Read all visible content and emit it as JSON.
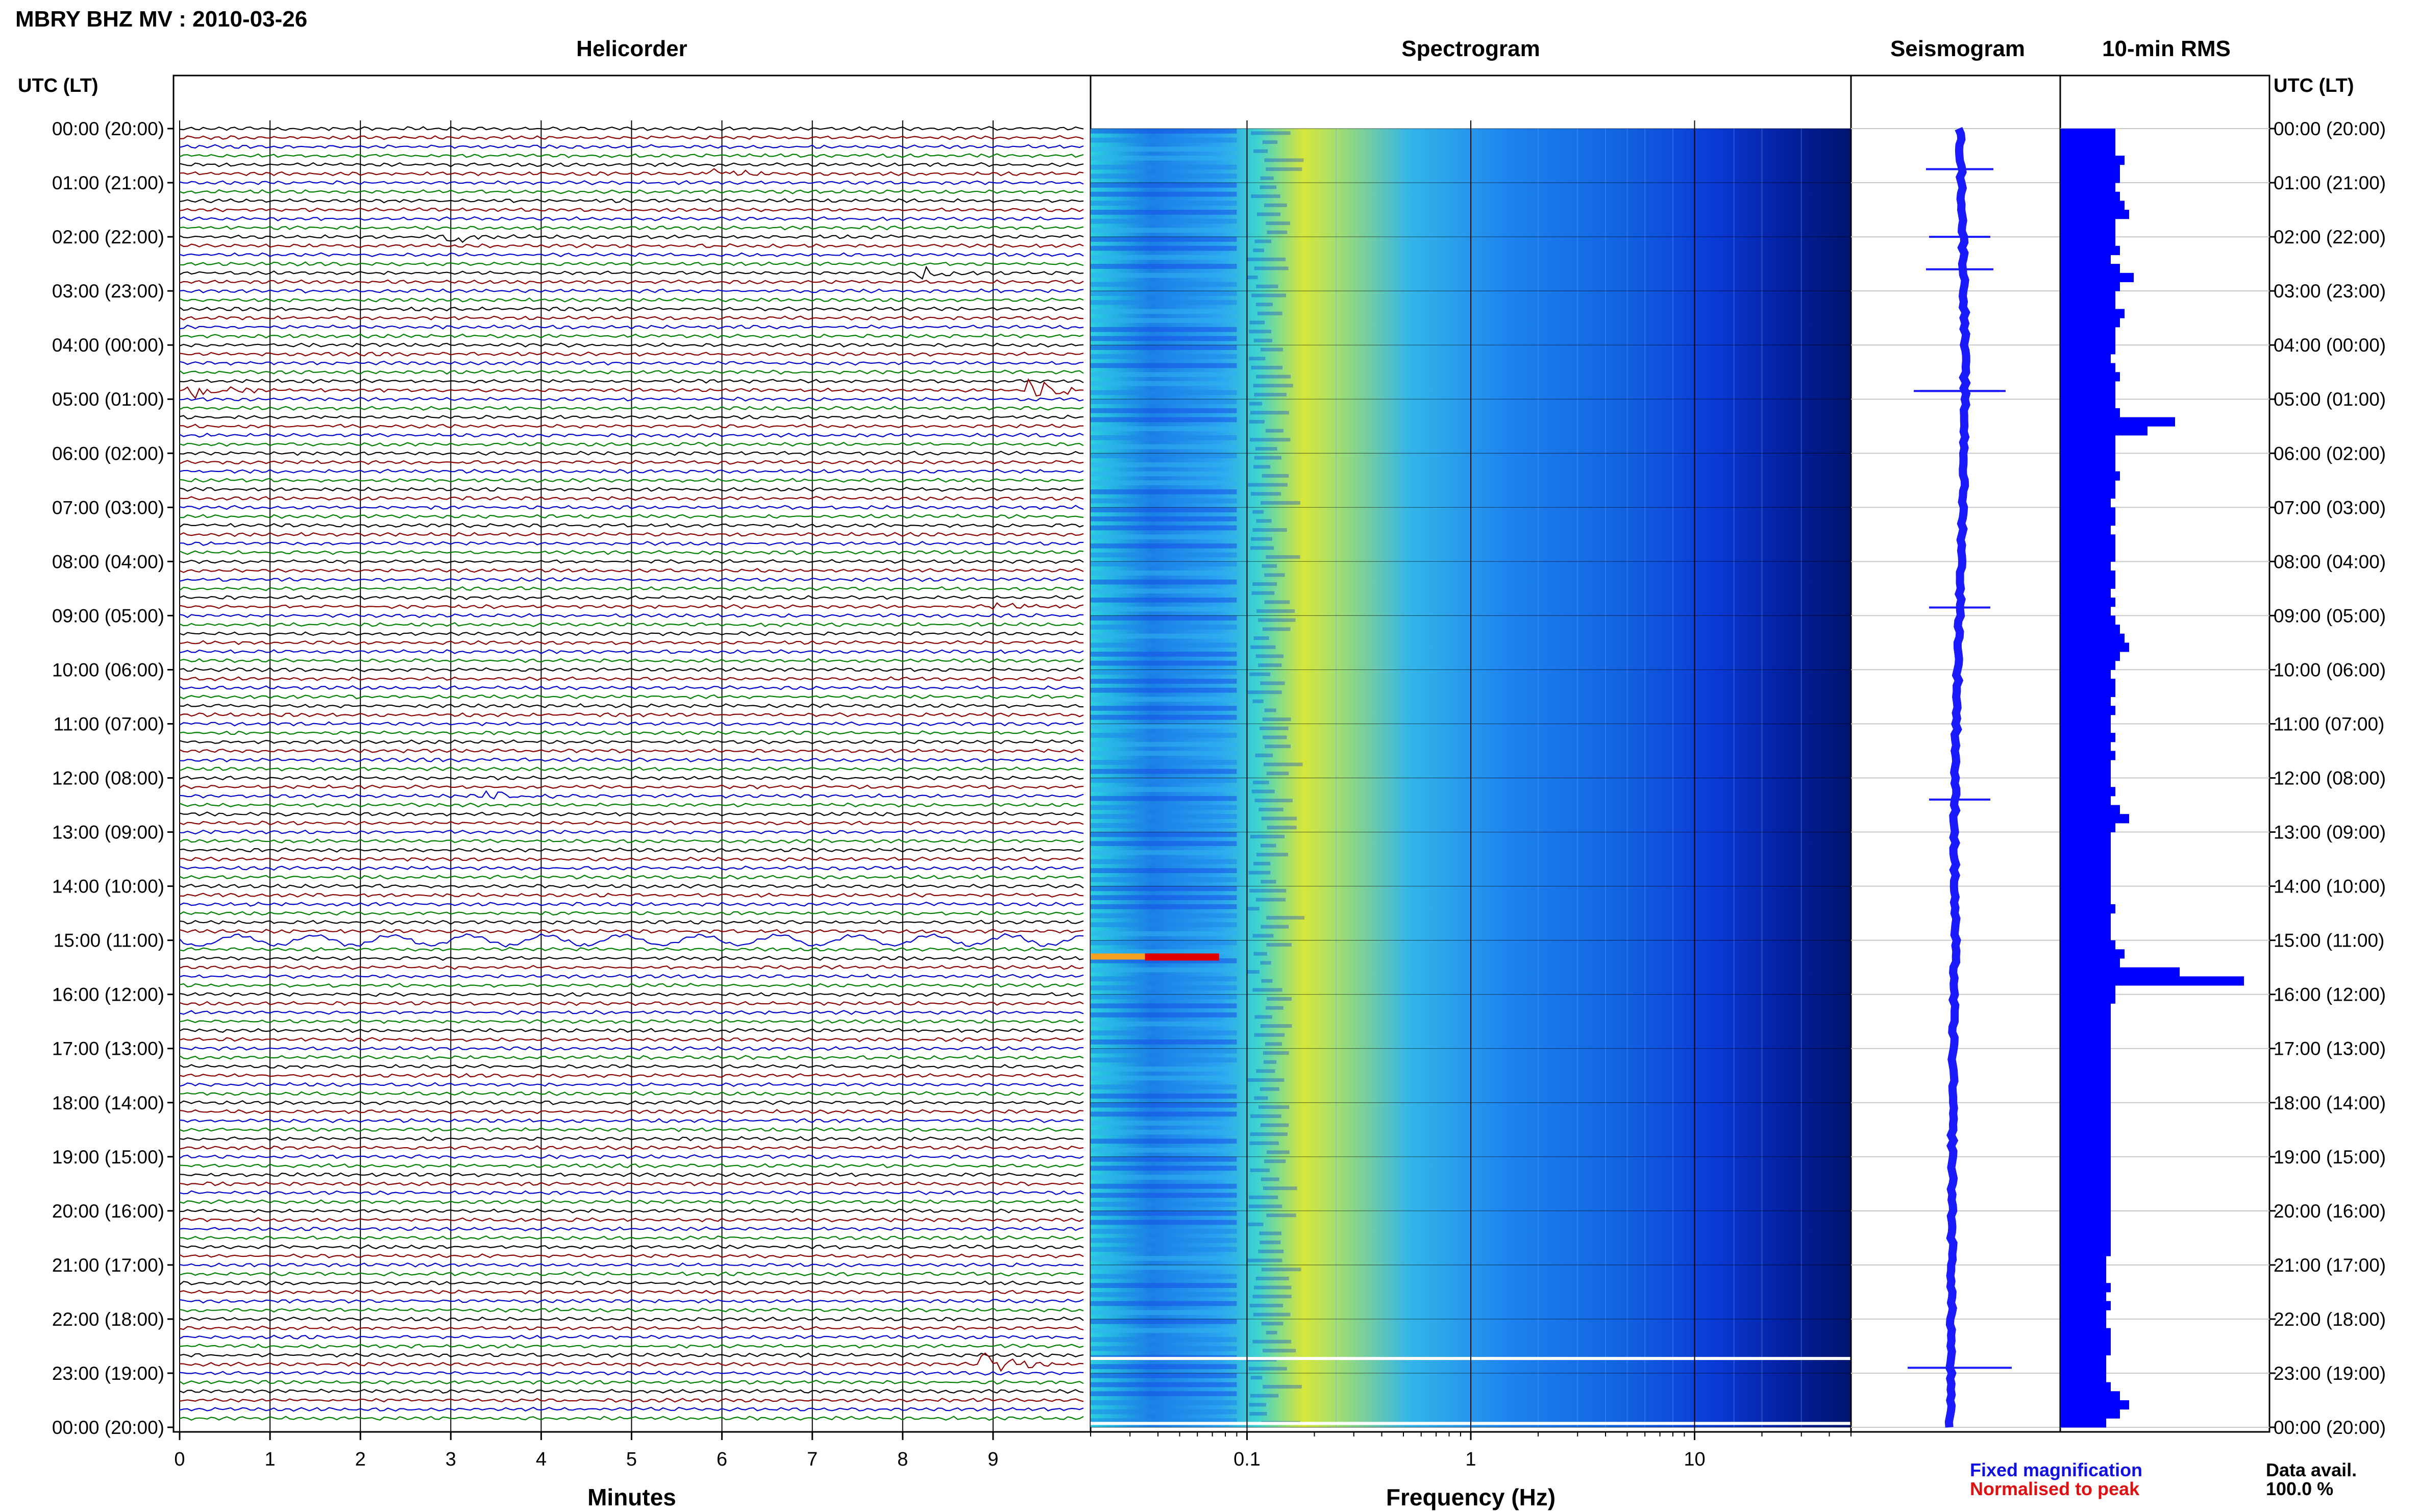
{
  "header": {
    "station_title": "MBRY BHZ MV : 2010-03-26",
    "utc_label_left": "UTC (LT)",
    "utc_label_right": "UTC (LT)"
  },
  "panels": {
    "helicorder": "Helicorder",
    "spectrogram": "Spectrogram",
    "seismogram": "Seismogram",
    "rms": "10-min RMS"
  },
  "axes": {
    "minutes_label": "Minutes",
    "frequency_label": "Frequency (Hz)",
    "minute_ticks": [
      "0",
      "1",
      "2",
      "3",
      "4",
      "5",
      "6",
      "7",
      "8",
      "9"
    ],
    "frequency_ticks": [
      "0.1",
      "1",
      "10"
    ]
  },
  "time_labels": [
    "00:00 (20:00)",
    "01:00 (21:00)",
    "02:00 (22:00)",
    "03:00 (23:00)",
    "04:00 (00:00)",
    "05:00 (01:00)",
    "06:00 (02:00)",
    "07:00 (03:00)",
    "08:00 (04:00)",
    "09:00 (05:00)",
    "10:00 (06:00)",
    "11:00 (07:00)",
    "12:00 (08:00)",
    "13:00 (09:00)",
    "14:00 (10:00)",
    "15:00 (11:00)",
    "16:00 (12:00)",
    "17:00 (13:00)",
    "18:00 (14:00)",
    "19:00 (15:00)",
    "20:00 (16:00)",
    "21:00 (17:00)",
    "22:00 (18:00)",
    "23:00 (19:00)",
    "00:00 (20:00)"
  ],
  "legend": {
    "fixed": "Fixed magnification",
    "normalised": "Normalised to peak",
    "avail_label": "Data avail.",
    "avail_value": "100.0 %"
  },
  "colors": {
    "fixed": "#1010e0",
    "normalised": "#e01010",
    "trace_cycle": [
      "#000000",
      "#8b0000",
      "#0000cd",
      "#008000"
    ],
    "rms_bar": "#0000ff"
  },
  "chart_data": {
    "type": "helicorder+spectrogram+seismogram+rms",
    "station": "MBRY BHZ MV",
    "date": "2010-03-26",
    "rows_per_hour": 6,
    "rms_10min": [
      1.2,
      1.2,
      1.2,
      1.4,
      1.3,
      1.3,
      1.2,
      1.3,
      1.4,
      1.5,
      1.2,
      1.2,
      1.2,
      1.3,
      1.1,
      1.3,
      1.6,
      1.3,
      1.2,
      1.2,
      1.4,
      1.3,
      1.2,
      1.2,
      1.2,
      1.1,
      1.2,
      1.3,
      1.2,
      1.2,
      1.2,
      1.3,
      2.5,
      1.9,
      1.2,
      1.2,
      1.2,
      1.2,
      1.3,
      1.2,
      1.2,
      1.1,
      1.2,
      1.2,
      1.1,
      1.2,
      1.2,
      1.2,
      1.1,
      1.2,
      1.2,
      1.1,
      1.2,
      1.1,
      1.2,
      1.3,
      1.4,
      1.5,
      1.3,
      1.2,
      1.1,
      1.2,
      1.2,
      1.1,
      1.2,
      1.1,
      1.1,
      1.2,
      1.1,
      1.2,
      1.1,
      1.1,
      1.1,
      1.2,
      1.1,
      1.3,
      1.5,
      1.2,
      1.1,
      1.1,
      1.1,
      1.1,
      1.1,
      1.1,
      1.1,
      1.1,
      1.2,
      1.1,
      1.1,
      1.1,
      1.2,
      1.4,
      1.3,
      2.6,
      4.0,
      1.2,
      1.2,
      1.1,
      1.1,
      1.1,
      1.1,
      1.1,
      1.1,
      1.1,
      1.1,
      1.1,
      1.1,
      1.1,
      1.1,
      1.1,
      1.1,
      1.1,
      1.1,
      1.1,
      1.1,
      1.1,
      1.1,
      1.1,
      1.1,
      1.1,
      1.1,
      1.1,
      1.1,
      1.1,
      1.1,
      1.0,
      1.0,
      1.0,
      1.1,
      1.0,
      1.1,
      1.0,
      1.0,
      1.1,
      1.1,
      1.1,
      1.0,
      1.0,
      1.0,
      1.1,
      1.3,
      1.5,
      1.3,
      1.0
    ],
    "events": [
      {
        "hour": 0.75,
        "minute": 5.8,
        "amp": 3.0,
        "color": 1
      },
      {
        "hour": 2.0,
        "minute": 3.0,
        "amp": 2.5,
        "color": 0
      },
      {
        "hour": 2.6,
        "minute": 8.2,
        "amp": 3.0,
        "color": 0
      },
      {
        "hour": 4.85,
        "minute": 9.4,
        "amp": 5.0,
        "color": 0
      },
      {
        "hour": 4.85,
        "minute": 0.1,
        "amp": 4.0,
        "color": 1
      },
      {
        "hour": 8.85,
        "minute": 9.0,
        "amp": 2.5,
        "color": 1
      },
      {
        "hour": 12.4,
        "minute": 3.4,
        "amp": 2.5,
        "color": 2
      },
      {
        "hour": 22.9,
        "minute": 8.9,
        "amp": 6.0,
        "color": 0
      }
    ],
    "spectrogram": {
      "freq_min": 0.02,
      "freq_max": 50,
      "peak_band_hz": [
        0.2,
        0.3
      ],
      "colormap": "jet"
    }
  }
}
